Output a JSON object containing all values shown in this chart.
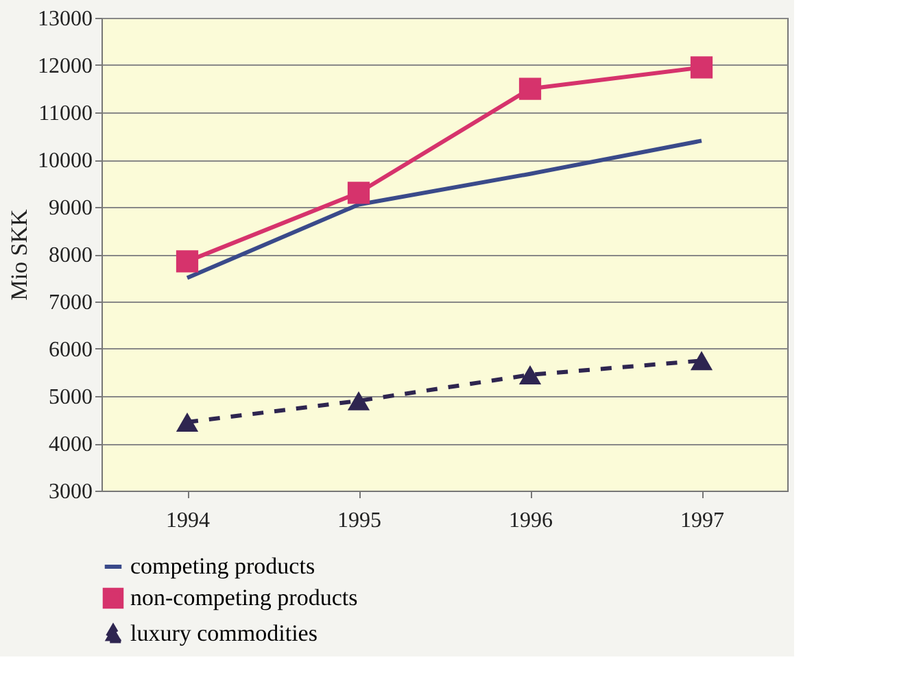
{
  "chart_data": {
    "type": "line",
    "ylabel": "Mio SKK",
    "categories": [
      "1994",
      "1995",
      "1996",
      "1997"
    ],
    "ylim": [
      3000,
      13000
    ],
    "yticks": [
      3000,
      4000,
      5000,
      6000,
      7000,
      8000,
      9000,
      10000,
      11000,
      12000,
      13000
    ],
    "grid": "y",
    "legend": "bottom",
    "series": [
      {
        "name": "competing products",
        "color": "#3a4a8a",
        "values": [
          7500,
          9050,
          9700,
          10400
        ],
        "marker": "none",
        "line_style": "solid"
      },
      {
        "name": "non-competing products",
        "color": "#d6336c",
        "values": [
          7850,
          9300,
          11500,
          11950
        ],
        "marker": "square",
        "line_style": "solid"
      },
      {
        "name": "luxury commodities",
        "color": "#2e2550",
        "values": [
          4450,
          4900,
          5450,
          5750
        ],
        "marker": "triangle",
        "line_style": "dashed"
      }
    ]
  }
}
